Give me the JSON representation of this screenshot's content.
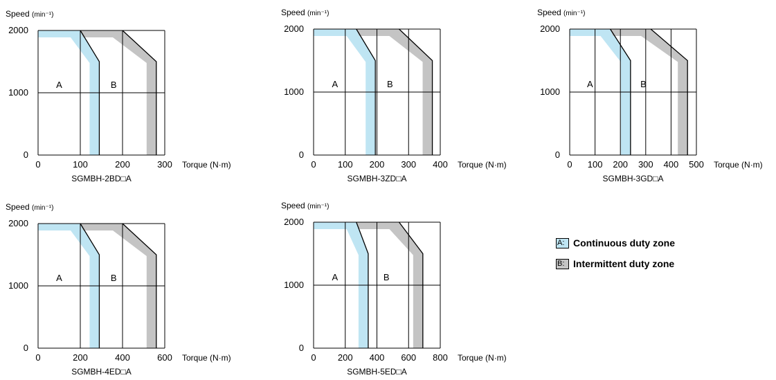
{
  "colors": {
    "continuous": "#bfe5f3",
    "intermittent": "#c4c4c4",
    "line": "#000000"
  },
  "chart_data": [
    {
      "type": "area",
      "model": "SGMBH-2BD□A",
      "ylabel": "Speed (min⁻¹)",
      "xlabel": "Torque (N·m)",
      "xlim": [
        0,
        300
      ],
      "ylim": [
        0,
        2000
      ],
      "x_ticks": [
        "0",
        "100",
        "200",
        "300"
      ],
      "y_ticks": [
        "0",
        "1000",
        "2000"
      ],
      "zone_a_label": "A",
      "zone_b_label": "B",
      "series": [
        {
          "zone": "A",
          "points": [
            [
              100,
              2000
            ],
            [
              145,
              1500
            ],
            [
              145,
              0
            ]
          ]
        },
        {
          "zone": "B",
          "points": [
            [
              200,
              2000
            ],
            [
              280,
              1500
            ],
            [
              280,
              0
            ]
          ]
        }
      ]
    },
    {
      "type": "area",
      "model": "SGMBH-3ZD□A",
      "ylabel": "Speed (min⁻¹)",
      "xlabel": "Torque (N·m)",
      "xlim": [
        0,
        400
      ],
      "ylim": [
        0,
        2000
      ],
      "x_ticks": [
        "0",
        "100",
        "200",
        "300",
        "400"
      ],
      "y_ticks": [
        "0",
        "1000",
        "2000"
      ],
      "zone_a_label": "A",
      "zone_b_label": "B",
      "series": [
        {
          "zone": "A",
          "points": [
            [
              135,
              2000
            ],
            [
              195,
              1500
            ],
            [
              195,
              0
            ]
          ]
        },
        {
          "zone": "B",
          "points": [
            [
              270,
              2000
            ],
            [
              375,
              1500
            ],
            [
              375,
              0
            ]
          ]
        }
      ]
    },
    {
      "type": "area",
      "model": "SGMBH-3GD□A",
      "ylabel": "Speed (min⁻¹)",
      "xlabel": "Torque (N·m)",
      "xlim": [
        0,
        500
      ],
      "ylim": [
        0,
        2000
      ],
      "x_ticks": [
        "0",
        "100",
        "200",
        "300",
        "400",
        "500"
      ],
      "y_ticks": [
        "0",
        "1000",
        "2000"
      ],
      "zone_a_label": "A",
      "zone_b_label": "B",
      "series": [
        {
          "zone": "A",
          "points": [
            [
              160,
              2000
            ],
            [
              240,
              1500
            ],
            [
              240,
              0
            ]
          ]
        },
        {
          "zone": "B",
          "points": [
            [
              320,
              2000
            ],
            [
              465,
              1500
            ],
            [
              465,
              0
            ]
          ]
        }
      ]
    },
    {
      "type": "area",
      "model": "SGMBH-4ED□A",
      "ylabel": "Speed (min⁻¹)",
      "xlabel": "Torque (N·m)",
      "xlim": [
        0,
        600
      ],
      "ylim": [
        0,
        2000
      ],
      "x_ticks": [
        "0",
        "200",
        "400",
        "600"
      ],
      "y_ticks": [
        "0",
        "1000",
        "2000"
      ],
      "zone_a_label": "A",
      "zone_b_label": "B",
      "series": [
        {
          "zone": "A",
          "points": [
            [
              200,
              2000
            ],
            [
              290,
              1500
            ],
            [
              290,
              0
            ]
          ]
        },
        {
          "zone": "B",
          "points": [
            [
              400,
              2000
            ],
            [
              560,
              1500
            ],
            [
              560,
              0
            ]
          ]
        }
      ]
    },
    {
      "type": "area",
      "model": "SGMBH-5ED□A",
      "ylabel": "Speed (min⁻¹)",
      "xlabel": "Torque (N·m)",
      "xlim": [
        0,
        800
      ],
      "ylim": [
        0,
        2000
      ],
      "x_ticks": [
        "0",
        "200",
        "400",
        "600",
        "800"
      ],
      "y_ticks": [
        "0",
        "1000",
        "2000"
      ],
      "zone_a_label": "A",
      "zone_b_label": "B",
      "series": [
        {
          "zone": "A",
          "points": [
            [
              270,
              2000
            ],
            [
              345,
              1500
            ],
            [
              345,
              0
            ]
          ]
        },
        {
          "zone": "B",
          "points": [
            [
              540,
              2000
            ],
            [
              690,
              1500
            ],
            [
              690,
              0
            ]
          ]
        }
      ]
    }
  ],
  "legend": {
    "a_key": "A:",
    "a_text": "Continuous duty zone",
    "b_key": "B:",
    "b_text": "Intermittent duty zone"
  }
}
